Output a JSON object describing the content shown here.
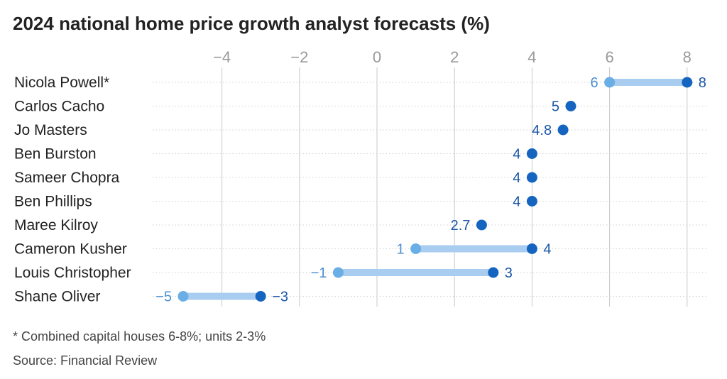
{
  "chart_data": {
    "type": "dot-range",
    "title": "2024 national home price growth analyst forecasts (%)",
    "xlim": [
      -5.2,
      8.5
    ],
    "x_ticks": [
      -4,
      -2,
      0,
      2,
      4,
      6,
      8
    ],
    "x_tick_labels": [
      "−4",
      "−2",
      "0",
      "2",
      "4",
      "6",
      "8"
    ],
    "grid": "vertical",
    "categories": [
      "Nicola Powell*",
      "Carlos Cacho",
      "Jo Masters",
      "Ben Burston",
      "Sameer Chopra",
      "Ben Phillips",
      "Maree Kilroy",
      "Cameron Kusher",
      "Louis Christopher",
      "Shane Oliver"
    ],
    "series": [
      {
        "role": "low",
        "values": [
          6,
          null,
          null,
          null,
          null,
          null,
          null,
          1,
          -1,
          -5
        ],
        "labels": [
          "6",
          "",
          "",
          "",
          "",
          "",
          "",
          "1",
          "−1",
          "−5"
        ]
      },
      {
        "role": "high",
        "values": [
          8,
          5,
          4.8,
          4,
          4,
          4,
          2.7,
          4,
          3,
          -3
        ],
        "labels": [
          "8",
          "5",
          "4.8",
          "4",
          "4",
          "4",
          "2.7",
          "4",
          "3",
          "−3"
        ]
      }
    ],
    "colors": {
      "low": "#6aaee6",
      "high": "#1565c0",
      "range_bar": "#a9cdf0",
      "low_label": "#4d8fd1",
      "high_label": "#1a56a6",
      "tick_label": "#9a9a9a",
      "grid": "#c8c8c8",
      "row_line": "#d0d0d0"
    }
  },
  "footnote": "* Combined capital houses 6-8%; units 2-3%",
  "source": "Source: Financial Review"
}
